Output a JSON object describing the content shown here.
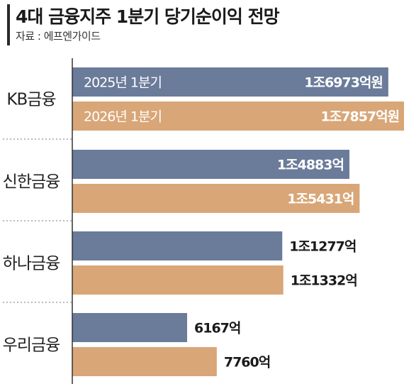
{
  "header": {
    "title": "4대 금융지주 1분기 당기순이익 전망",
    "source": "자료 : 에프엔가이드"
  },
  "colors": {
    "series_2025": "#6b7b9a",
    "series_2026": "#d9a678"
  },
  "chart_data": {
    "type": "bar",
    "orientation": "horizontal",
    "title": "4대 금융지주 1분기 당기순이익 전망",
    "unit": "억원",
    "categories": [
      "KB금융",
      "신한금융",
      "하나금융",
      "우리금융"
    ],
    "series": [
      {
        "name": "2025년 1분기",
        "values": [
          16973,
          14883,
          11277,
          6167
        ],
        "labels": [
          "1조6973억원",
          "1조4883억",
          "1조1277억",
          "6167억"
        ]
      },
      {
        "name": "2026년 1분기",
        "values": [
          17857,
          15431,
          11332,
          7760
        ],
        "labels": [
          "1조7857억원",
          "1조5431억",
          "1조1332억",
          "7760억"
        ]
      }
    ]
  }
}
